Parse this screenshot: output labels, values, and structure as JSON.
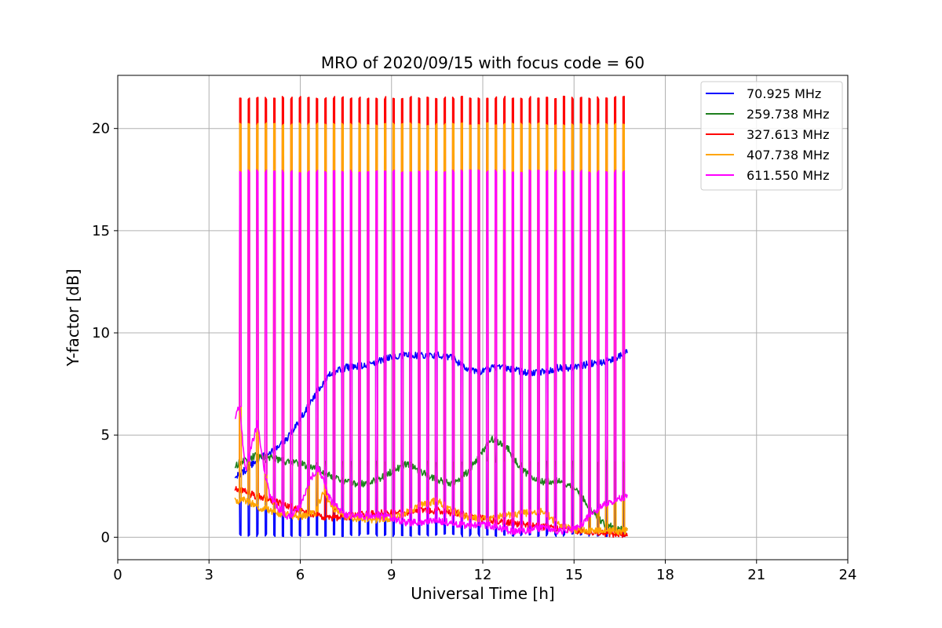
{
  "chart_data": {
    "type": "line",
    "title": "MRO of 2020/09/15 with focus code = 60",
    "xlabel": "Universal Time [h]",
    "ylabel": "Y-factor [dB]",
    "xlim": [
      0,
      24
    ],
    "ylim": [
      -1.1,
      22.6
    ],
    "xticks": [
      0,
      3,
      6,
      9,
      12,
      15,
      18,
      21,
      24
    ],
    "yticks": [
      0,
      5,
      10,
      15,
      20
    ],
    "grid": true,
    "legend_position": "top-right",
    "cycle": {
      "start_h": 4.0,
      "end_h": 16.6,
      "count": 46
    },
    "series": [
      {
        "name": "70.925 MHz",
        "color": "#0000ff",
        "peak": 0.1,
        "baseline": [
          [
            3.85,
            2.9
          ],
          [
            4.2,
            3.3
          ],
          [
            4.6,
            3.8
          ],
          [
            5.0,
            4.1
          ],
          [
            5.5,
            4.7
          ],
          [
            6.0,
            5.8
          ],
          [
            6.5,
            7.0
          ],
          [
            7.0,
            8.0
          ],
          [
            7.5,
            8.3
          ],
          [
            8.0,
            8.4
          ],
          [
            8.5,
            8.6
          ],
          [
            9.0,
            8.8
          ],
          [
            9.5,
            8.9
          ],
          [
            10.0,
            8.9
          ],
          [
            10.5,
            8.9
          ],
          [
            11.0,
            8.8
          ],
          [
            11.5,
            8.2
          ],
          [
            12.0,
            8.1
          ],
          [
            12.5,
            8.4
          ],
          [
            13.0,
            8.2
          ],
          [
            13.5,
            8.0
          ],
          [
            14.0,
            8.1
          ],
          [
            14.5,
            8.3
          ],
          [
            15.0,
            8.3
          ],
          [
            15.5,
            8.5
          ],
          [
            16.0,
            8.6
          ],
          [
            16.4,
            8.8
          ],
          [
            16.75,
            9.1
          ]
        ]
      },
      {
        "name": "259.738 MHz",
        "color": "#1f7f1f",
        "peak": 3.7,
        "baseline": [
          [
            3.85,
            3.5
          ],
          [
            4.2,
            3.8
          ],
          [
            4.6,
            4.0
          ],
          [
            5.0,
            3.9
          ],
          [
            5.5,
            3.7
          ],
          [
            6.0,
            3.6
          ],
          [
            6.5,
            3.4
          ],
          [
            7.0,
            3.0
          ],
          [
            7.5,
            2.7
          ],
          [
            8.0,
            2.6
          ],
          [
            8.5,
            2.8
          ],
          [
            9.0,
            3.2
          ],
          [
            9.5,
            3.6
          ],
          [
            10.0,
            3.2
          ],
          [
            10.5,
            2.8
          ],
          [
            11.0,
            2.6
          ],
          [
            11.5,
            3.2
          ],
          [
            12.0,
            4.2
          ],
          [
            12.3,
            4.8
          ],
          [
            12.8,
            4.4
          ],
          [
            13.2,
            3.5
          ],
          [
            13.6,
            2.9
          ],
          [
            14.0,
            2.7
          ],
          [
            14.5,
            2.8
          ],
          [
            15.0,
            2.4
          ],
          [
            15.5,
            1.5
          ],
          [
            16.0,
            0.6
          ],
          [
            16.5,
            0.4
          ],
          [
            16.75,
            0.35
          ]
        ]
      },
      {
        "name": "327.613 MHz",
        "color": "#ff0000",
        "peak": 21.5,
        "baseline": [
          [
            3.85,
            2.4
          ],
          [
            4.2,
            2.2
          ],
          [
            4.6,
            2.0
          ],
          [
            5.0,
            1.8
          ],
          [
            5.5,
            1.6
          ],
          [
            6.0,
            1.3
          ],
          [
            6.5,
            1.1
          ],
          [
            7.0,
            0.95
          ],
          [
            7.5,
            1.0
          ],
          [
            8.0,
            1.1
          ],
          [
            8.5,
            1.15
          ],
          [
            9.0,
            1.2
          ],
          [
            9.5,
            1.2
          ],
          [
            10.0,
            1.3
          ],
          [
            10.5,
            1.3
          ],
          [
            11.0,
            1.2
          ],
          [
            11.5,
            1.1
          ],
          [
            12.0,
            0.9
          ],
          [
            12.5,
            0.8
          ],
          [
            13.0,
            0.7
          ],
          [
            13.5,
            0.6
          ],
          [
            14.0,
            0.5
          ],
          [
            14.5,
            0.45
          ],
          [
            15.0,
            0.35
          ],
          [
            15.5,
            0.25
          ],
          [
            16.0,
            0.2
          ],
          [
            16.5,
            0.15
          ],
          [
            16.75,
            0.2
          ]
        ]
      },
      {
        "name": "407.738 MHz",
        "color": "#ffa500",
        "peak": 20.2,
        "baseline": [
          [
            3.85,
            1.8
          ],
          [
            4.2,
            1.8
          ],
          [
            4.6,
            1.5
          ],
          [
            5.0,
            1.3
          ],
          [
            5.5,
            1.1
          ],
          [
            6.0,
            1.0
          ],
          [
            6.5,
            1.2
          ],
          [
            6.8,
            2.3
          ],
          [
            7.0,
            1.5
          ],
          [
            7.5,
            1.0
          ],
          [
            8.0,
            0.9
          ],
          [
            8.5,
            0.85
          ],
          [
            9.0,
            0.95
          ],
          [
            9.5,
            1.2
          ],
          [
            10.0,
            1.6
          ],
          [
            10.5,
            1.8
          ],
          [
            11.0,
            1.3
          ],
          [
            11.5,
            1.0
          ],
          [
            12.0,
            0.9
          ],
          [
            12.5,
            1.0
          ],
          [
            13.0,
            1.1
          ],
          [
            13.5,
            1.2
          ],
          [
            14.0,
            1.3
          ],
          [
            14.5,
            0.6
          ],
          [
            15.0,
            0.35
          ],
          [
            15.5,
            0.3
          ],
          [
            16.0,
            0.3
          ],
          [
            16.5,
            0.3
          ],
          [
            16.75,
            0.3
          ]
        ]
      },
      {
        "name": "611.550 MHz",
        "color": "#ff00ff",
        "peak": 17.9,
        "baseline": [
          [
            3.85,
            5.8
          ],
          [
            4.0,
            6.4
          ],
          [
            4.2,
            3.2
          ],
          [
            4.4,
            4.5
          ],
          [
            4.6,
            5.6
          ],
          [
            4.8,
            3.4
          ],
          [
            5.0,
            2.0
          ],
          [
            5.3,
            1.4
          ],
          [
            5.6,
            1.0
          ],
          [
            6.0,
            1.5
          ],
          [
            6.3,
            2.8
          ],
          [
            6.6,
            3.4
          ],
          [
            7.0,
            1.8
          ],
          [
            7.5,
            1.1
          ],
          [
            8.0,
            1.0
          ],
          [
            8.5,
            1.1
          ],
          [
            9.0,
            0.9
          ],
          [
            9.5,
            0.7
          ],
          [
            10.0,
            0.75
          ],
          [
            10.5,
            0.8
          ],
          [
            11.0,
            0.7
          ],
          [
            11.5,
            0.55
          ],
          [
            12.0,
            0.6
          ],
          [
            12.5,
            0.5
          ],
          [
            13.0,
            0.25
          ],
          [
            13.5,
            0.35
          ],
          [
            14.0,
            0.5
          ],
          [
            14.5,
            0.3
          ],
          [
            15.0,
            0.4
          ],
          [
            15.3,
            0.7
          ],
          [
            15.6,
            1.2
          ],
          [
            16.0,
            1.6
          ],
          [
            16.5,
            1.9
          ],
          [
            16.75,
            2.0
          ]
        ]
      }
    ]
  }
}
